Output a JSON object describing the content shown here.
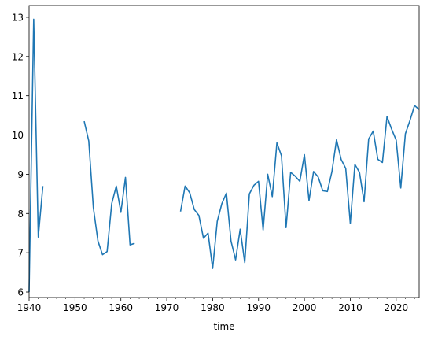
{
  "chart_data": {
    "type": "line",
    "title": "",
    "xlabel": "time",
    "ylabel": "",
    "xlim": [
      1940,
      2025
    ],
    "ylim": [
      5.86,
      13.3
    ],
    "grid": false,
    "x_ticks": [
      1940,
      1950,
      1960,
      1970,
      1980,
      1990,
      2000,
      2010,
      2020
    ],
    "y_ticks": [
      6,
      7,
      8,
      9,
      10,
      11,
      12,
      13
    ],
    "series": [
      {
        "color": "#1f77b4",
        "x": [
          1940,
          1941,
          1942,
          1943,
          1944,
          1945,
          1946,
          1947,
          1948,
          1949,
          1950,
          1951,
          1952,
          1953,
          1954,
          1955,
          1956,
          1957,
          1958,
          1959,
          1960,
          1961,
          1962,
          1963,
          1964,
          1965,
          1966,
          1967,
          1968,
          1969,
          1970,
          1971,
          1972,
          1973,
          1974,
          1975,
          1976,
          1977,
          1978,
          1979,
          1980,
          1981,
          1982,
          1983,
          1984,
          1985,
          1986,
          1987,
          1988,
          1989,
          1990,
          1991,
          1992,
          1993,
          1994,
          1995,
          1996,
          1997,
          1998,
          1999,
          2000,
          2001,
          2002,
          2003,
          2004,
          2005,
          2006,
          2007,
          2008,
          2009,
          2010,
          2011,
          2012,
          2013,
          2014,
          2015,
          2016,
          2017,
          2018,
          2019,
          2020,
          2021,
          2022,
          2023,
          2024,
          2025
        ],
        "values": [
          6.0,
          12.95,
          7.4,
          8.7,
          null,
          null,
          null,
          null,
          null,
          null,
          null,
          null,
          10.35,
          9.85,
          8.15,
          7.3,
          6.95,
          7.03,
          8.25,
          8.7,
          8.03,
          8.92,
          7.2,
          7.24,
          null,
          null,
          null,
          null,
          null,
          null,
          null,
          null,
          null,
          8.05,
          8.7,
          8.53,
          8.1,
          7.95,
          7.37,
          7.5,
          6.6,
          7.8,
          8.25,
          8.52,
          7.3,
          6.82,
          7.6,
          6.75,
          8.5,
          8.72,
          8.82,
          7.58,
          9.0,
          8.43,
          9.8,
          9.47,
          7.64,
          9.05,
          8.95,
          8.82,
          9.5,
          8.33,
          9.07,
          8.93,
          8.58,
          8.56,
          9.07,
          9.88,
          9.38,
          9.15,
          7.75,
          9.25,
          9.05,
          8.3,
          9.9,
          10.1,
          9.38,
          9.3,
          10.47,
          10.15,
          9.87,
          8.65,
          10.03,
          10.37,
          10.75,
          10.65
        ]
      }
    ]
  }
}
